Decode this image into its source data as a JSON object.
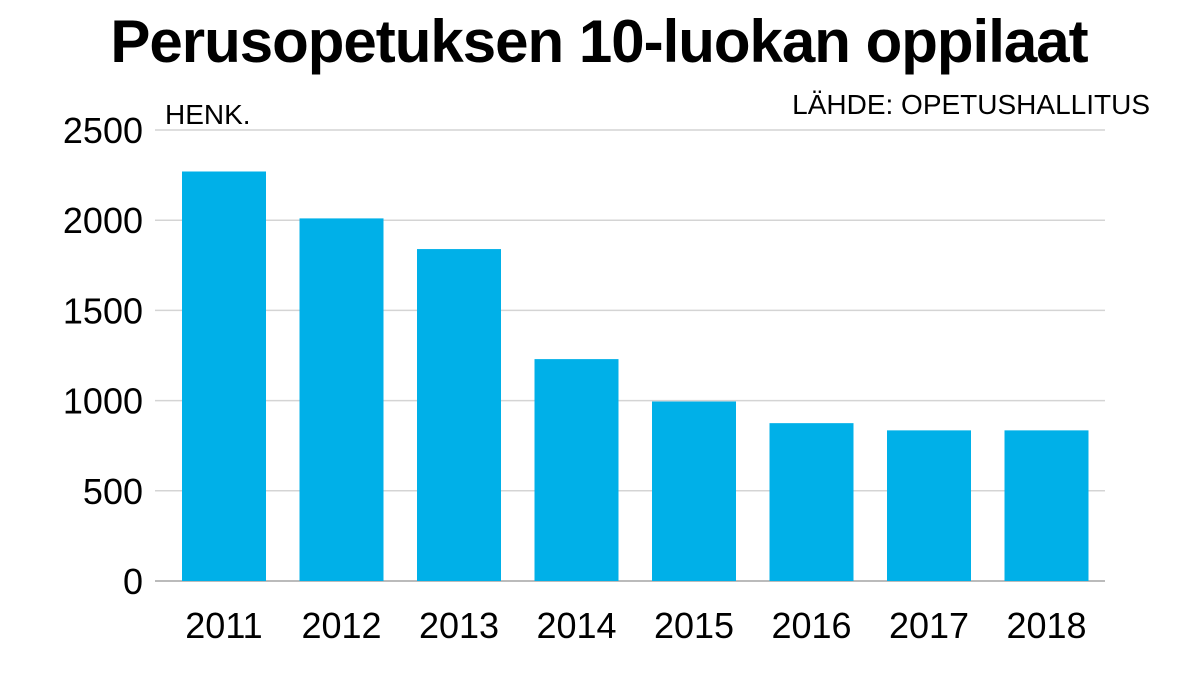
{
  "title": "Perusopetuksen 10-luokan oppilaat",
  "source": "LÄHDE: OPETUSHALLITUS",
  "colors": {
    "bar": "#00b0e8",
    "grid": "#d4d4d4",
    "axis": "#bbbbbb",
    "text": "#000000"
  },
  "chart_data": {
    "type": "bar",
    "title": "Perusopetuksen 10-luokan oppilaat",
    "ylabel": "HENK.",
    "xlabel": "",
    "categories": [
      "2011",
      "2012",
      "2013",
      "2014",
      "2015",
      "2016",
      "2017",
      "2018"
    ],
    "values": [
      2270,
      2010,
      1840,
      1230,
      995,
      875,
      835,
      835
    ],
    "ylim": [
      0,
      2500
    ],
    "yticks": [
      0,
      500,
      1000,
      1500,
      2000,
      2500
    ],
    "grid": true,
    "legend": "none"
  }
}
